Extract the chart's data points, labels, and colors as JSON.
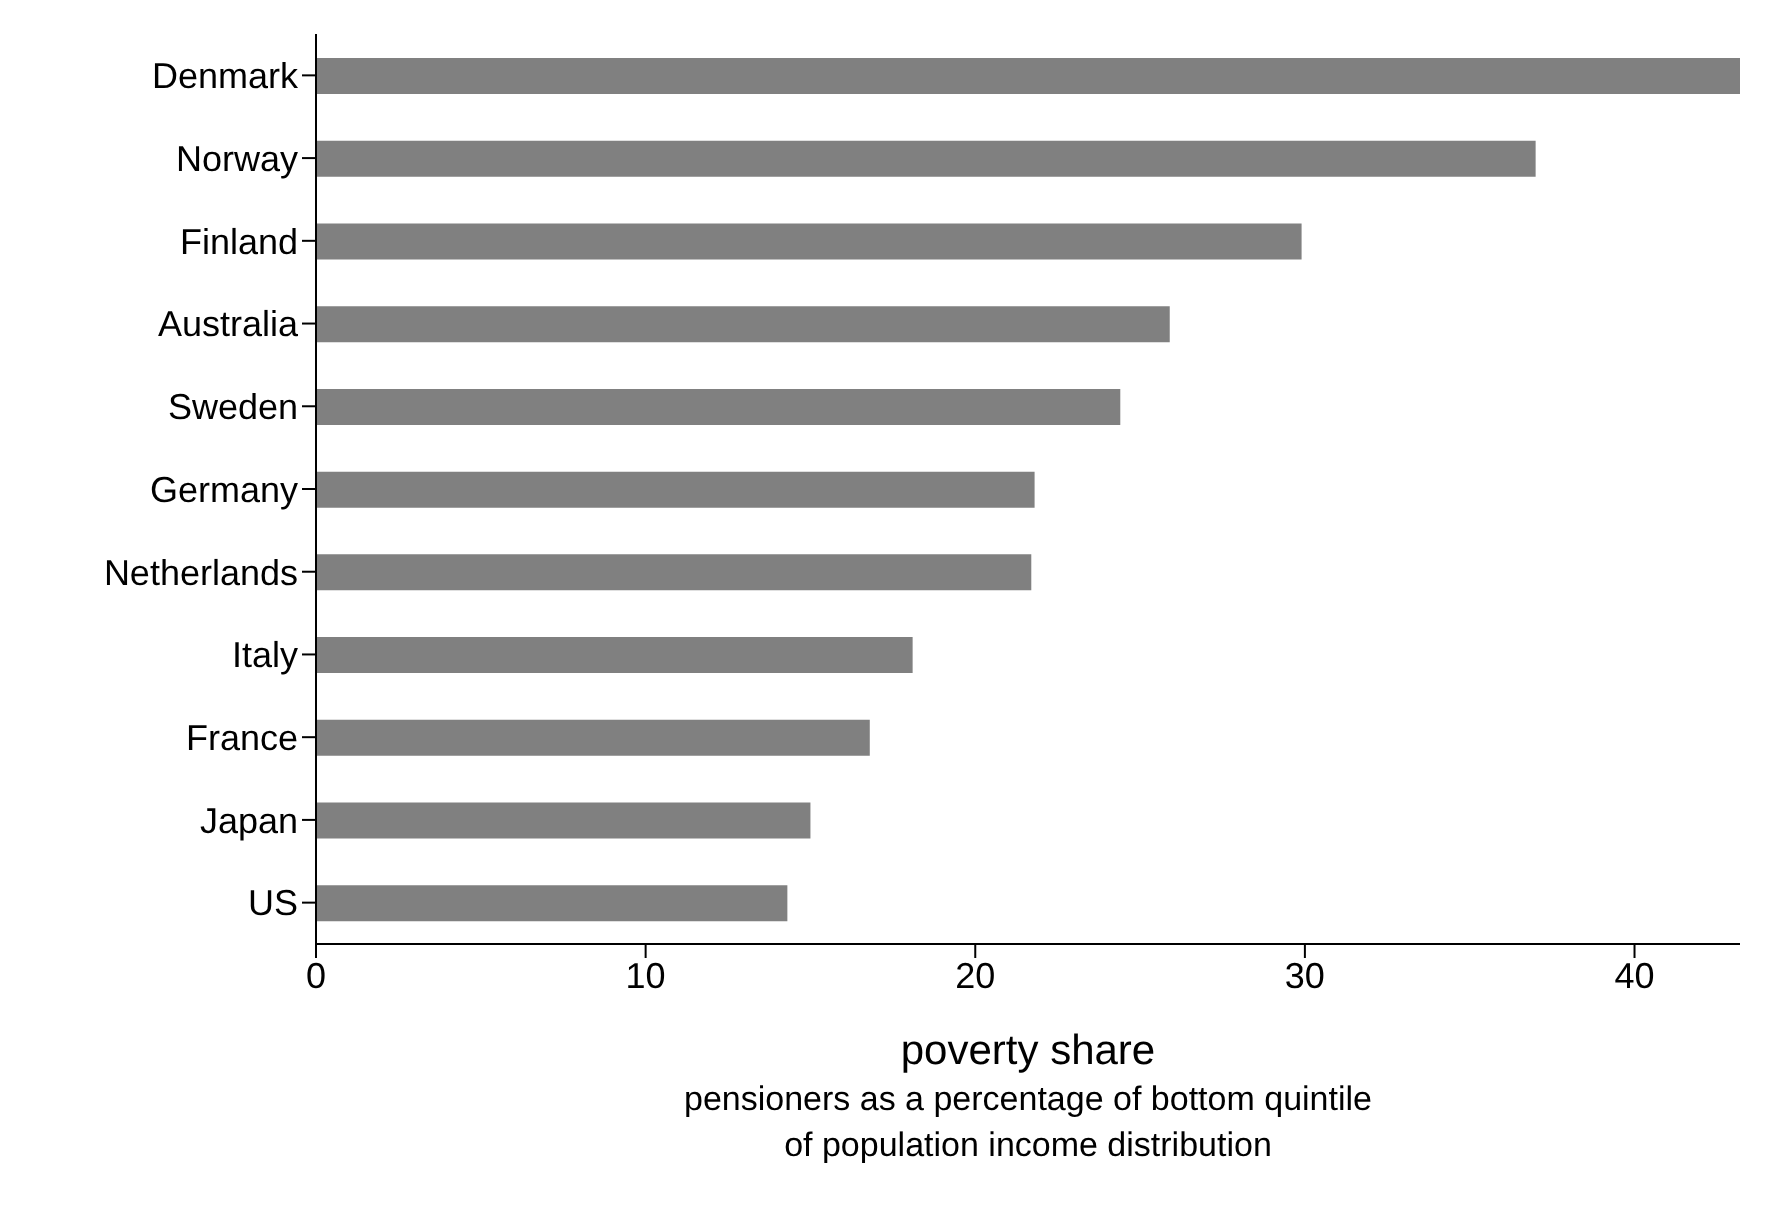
{
  "chart_data": {
    "type": "bar",
    "orientation": "horizontal",
    "xlabel": "poverty share",
    "annotations": [
      "pensioners as a percentage of bottom quintile",
      "of population income distribution"
    ],
    "categories": [
      "Denmark",
      "Norway",
      "Finland",
      "Australia",
      "Sweden",
      "Germany",
      "Netherlands",
      "Italy",
      "France",
      "Japan",
      "US"
    ],
    "values": [
      43.2,
      37.0,
      29.9,
      25.9,
      24.4,
      21.8,
      21.7,
      18.1,
      16.8,
      15.0,
      14.3
    ],
    "color": "#808080",
    "xlim": [
      0,
      43.2
    ],
    "xticks": [
      0,
      10,
      20,
      30,
      40
    ]
  }
}
